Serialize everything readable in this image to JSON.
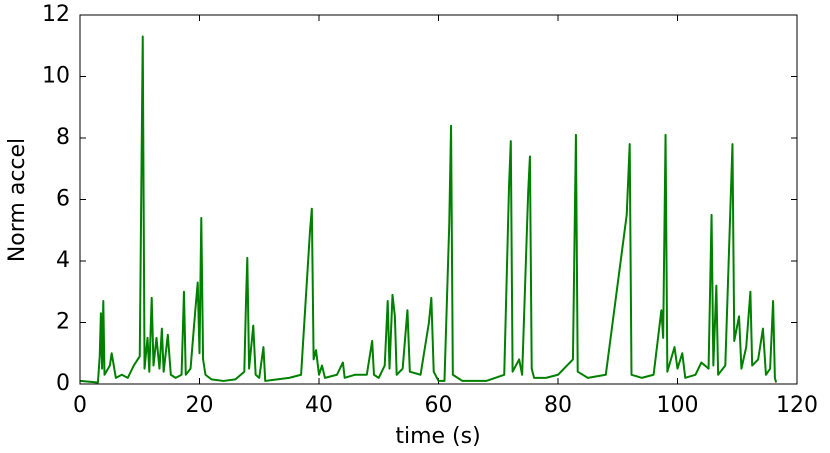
{
  "chart_data": {
    "type": "line",
    "xlabel": "time (s)",
    "ylabel": "Norm accel",
    "x": [
      0,
      3,
      3.3,
      3.5,
      3.7,
      3.9,
      4.1,
      5,
      5.3,
      6,
      7,
      8,
      9,
      10,
      10.5,
      10.8,
      11.3,
      11.6,
      12,
      12.3,
      12.8,
      13.3,
      13.7,
      14,
      14.7,
      15.2,
      16,
      17,
      17.4,
      17.7,
      18.5,
      19.3,
      19.7,
      20,
      20.3,
      20.6,
      21,
      22,
      24,
      26,
      27.5,
      27.8,
      28,
      28.3,
      29,
      29.4,
      30,
      30.7,
      31,
      33,
      35,
      37,
      38.5,
      38.8,
      39.1,
      39.5,
      40,
      40.5,
      41,
      43,
      44,
      44.3,
      46,
      48,
      48.9,
      49.2,
      50,
      51,
      51.5,
      51.8,
      52.3,
      52.7,
      53,
      54,
      54.8,
      55.2,
      57,
      58.4,
      58.8,
      59.2,
      60,
      61,
      61.8,
      62.1,
      62.4,
      64,
      68,
      71,
      71.8,
      72.1,
      72.4,
      73.5,
      74,
      75,
      75.3,
      75.6,
      76,
      78,
      80,
      82.5,
      83,
      83.3,
      85,
      88,
      91.5,
      92,
      92.3,
      94,
      96,
      97.3,
      97.6,
      98,
      98.3,
      99.5,
      100,
      100.8,
      101.3,
      103,
      104,
      105.2,
      105.7,
      106,
      106.5,
      106.8,
      108,
      109.2,
      109.5,
      110.3,
      110.7,
      111.5,
      112.2,
      112.5,
      113.5,
      114.3,
      114.8,
      115.5,
      116,
      116.3,
      116.5
    ],
    "series": [
      {
        "color": "#008000",
        "values": [
          0.1,
          0.05,
          0.9,
          2.3,
          0.5,
          2.7,
          0.3,
          0.6,
          1.0,
          0.2,
          0.3,
          0.2,
          0.6,
          0.9,
          11.3,
          0.5,
          1.5,
          0.4,
          2.8,
          0.6,
          1.5,
          0.5,
          1.8,
          0.4,
          1.6,
          0.3,
          0.2,
          0.3,
          3.0,
          0.3,
          0.5,
          2.4,
          3.3,
          1.0,
          5.4,
          0.8,
          0.3,
          0.15,
          0.1,
          0.15,
          0.4,
          2.8,
          4.1,
          0.5,
          1.9,
          0.3,
          0.2,
          1.2,
          0.1,
          0.15,
          0.2,
          0.3,
          5.0,
          5.7,
          0.8,
          1.1,
          0.3,
          0.6,
          0.2,
          0.3,
          0.7,
          0.2,
          0.3,
          0.3,
          1.4,
          0.3,
          0.2,
          0.6,
          2.7,
          0.5,
          2.9,
          2.2,
          0.3,
          0.5,
          2.4,
          0.4,
          0.3,
          2.0,
          2.8,
          0.4,
          0.1,
          0.1,
          5.2,
          8.4,
          0.3,
          0.1,
          0.1,
          0.3,
          6.4,
          7.9,
          0.4,
          0.8,
          0.3,
          6.2,
          7.4,
          0.5,
          0.2,
          0.2,
          0.3,
          0.8,
          8.1,
          0.4,
          0.2,
          0.3,
          5.5,
          7.8,
          0.3,
          0.2,
          0.3,
          2.4,
          1.5,
          8.1,
          0.4,
          1.2,
          0.5,
          1.0,
          0.2,
          0.3,
          0.7,
          0.5,
          5.5,
          0.6,
          3.2,
          0.3,
          0.6,
          7.8,
          1.4,
          2.2,
          0.5,
          1.2,
          3.0,
          0.6,
          0.8,
          1.8,
          0.3,
          0.5,
          2.7,
          0.2,
          0.05
        ]
      }
    ],
    "xlim": [
      0,
      120
    ],
    "xticks": [
      0,
      20,
      40,
      60,
      80,
      100,
      120
    ],
    "ylim": [
      0,
      12
    ],
    "yticks": [
      0,
      2,
      4,
      6,
      8,
      10,
      12
    ]
  }
}
